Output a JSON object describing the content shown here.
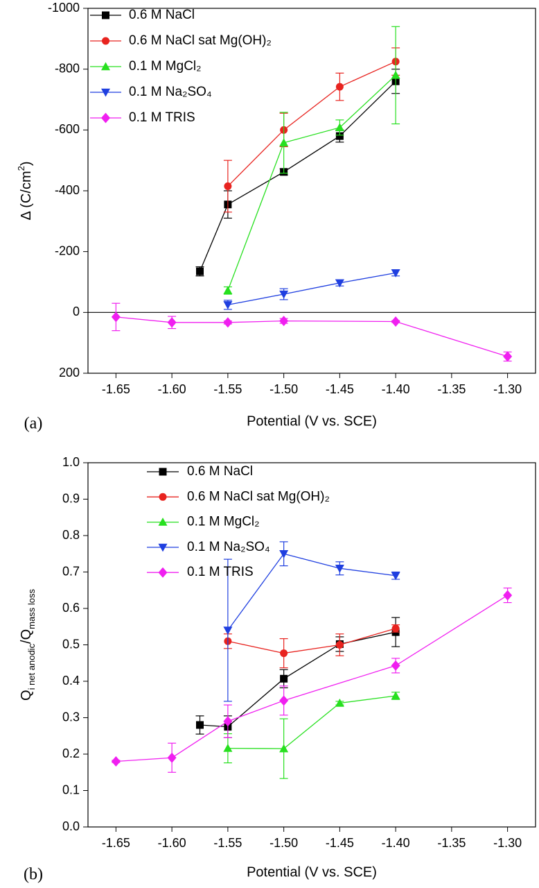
{
  "chart_data": [
    {
      "type": "line",
      "panel_label": "(a)",
      "xlabel": "Potential (V vs. SCE)",
      "ylabel": [
        {
          "text": "Δ (C/cm"
        },
        {
          "text": "2",
          "sup": true
        },
        {
          "text": ")"
        }
      ],
      "xlim": [
        -1.675,
        -1.275
      ],
      "xticks": [
        -1.65,
        {
          "value": -1.6,
          "label": "-1.60"
        },
        -1.55,
        {
          "value": -1.5,
          "label": "-1.50"
        },
        -1.45,
        {
          "value": -1.4,
          "label": "-1.40"
        },
        -1.35,
        {
          "value": -1.3,
          "label": "-1.30"
        }
      ],
      "ylim": [
        200,
        -1000
      ],
      "yticks": [
        200,
        0,
        -200,
        -400,
        -600,
        -800,
        -1000
      ],
      "zero_line": true,
      "series": [
        {
          "name": "0.6 M NaCl",
          "color": "#000000",
          "marker": "square",
          "x": [
            -1.575,
            -1.55,
            -1.5,
            -1.45,
            -1.4
          ],
          "values": [
            -135,
            -355,
            -462,
            -580,
            -760
          ],
          "errors": [
            15,
            45,
            10,
            20,
            40
          ]
        },
        {
          "name": "0.6 M NaCl sat Mg(OH)₂",
          "color": "#e8231f",
          "marker": "circle",
          "x": [
            -1.55,
            -1.5,
            -1.45,
            -1.4
          ],
          "values": [
            -415,
            -600,
            -742,
            -825
          ],
          "errors": [
            85,
            55,
            45,
            45
          ]
        },
        {
          "name": "0.1 M MgCl₂",
          "color": "#27e01f",
          "marker": "triangle-up",
          "x": [
            -1.55,
            -1.5,
            -1.45,
            -1.4
          ],
          "values": [
            -72,
            -558,
            -608,
            -780
          ],
          "errors": [
            12,
            100,
            25,
            160
          ]
        },
        {
          "name": "0.1 M Na₂SO₄",
          "color": "#1f3fe0",
          "marker": "triangle-down",
          "x": [
            -1.55,
            -1.5,
            -1.45,
            -1.4
          ],
          "values": [
            -25,
            -60,
            -97,
            -130
          ],
          "errors": [
            15,
            18,
            10,
            10
          ]
        },
        {
          "name": "0.1 M TRIS",
          "color": "#f01ff0",
          "marker": "diamond",
          "x": [
            -1.65,
            -1.6,
            -1.55,
            -1.5,
            -1.4,
            -1.3
          ],
          "values": [
            15,
            33,
            33,
            28,
            30,
            145
          ],
          "errors": [
            45,
            20,
            5,
            8,
            3,
            15
          ]
        }
      ]
    },
    {
      "type": "line",
      "panel_label": "(b)",
      "xlabel": "Potential (V vs. SCE)",
      "ylabel": [
        {
          "text": "Q"
        },
        {
          "text": "i net anodic",
          "sub": true
        },
        {
          "text": "/Q"
        },
        {
          "text": "mass loss",
          "sub": true
        }
      ],
      "xlim": [
        -1.675,
        -1.275
      ],
      "xticks": [
        -1.65,
        {
          "value": -1.6,
          "label": "-1.60"
        },
        -1.55,
        {
          "value": -1.5,
          "label": "-1.50"
        },
        -1.45,
        {
          "value": -1.4,
          "label": "-1.40"
        },
        -1.35,
        {
          "value": -1.3,
          "label": "-1.30"
        }
      ],
      "ylim": [
        0,
        1
      ],
      "yticks": [
        {
          "value": 0,
          "label": "0.0"
        },
        0.1,
        0.2,
        0.3,
        0.4,
        0.5,
        0.6,
        0.7,
        0.8,
        0.9,
        {
          "value": 1,
          "label": "1.0"
        }
      ],
      "series": [
        {
          "name": "0.6 M NaCl",
          "color": "#000000",
          "marker": "square",
          "x": [
            -1.575,
            -1.55,
            -1.5,
            -1.45,
            -1.4
          ],
          "values": [
            0.28,
            0.275,
            0.407,
            0.502,
            0.535
          ],
          "errors": [
            0.025,
            0.03,
            0.025,
            0.02,
            0.04
          ]
        },
        {
          "name": "0.6 M NaCl sat Mg(OH)₂",
          "color": "#e8231f",
          "marker": "circle",
          "x": [
            -1.55,
            -1.5,
            -1.45,
            -1.4
          ],
          "values": [
            0.51,
            0.477,
            0.5,
            0.545
          ],
          "errors": [
            0.02,
            0.04,
            0.03,
            0.01
          ]
        },
        {
          "name": "0.1 M MgCl₂",
          "color": "#27e01f",
          "marker": "triangle-up",
          "x": [
            -1.55,
            -1.5,
            -1.45,
            -1.4
          ],
          "values": [
            0.216,
            0.215,
            0.34,
            0.36
          ],
          "errors": [
            0.04,
            0.082,
            0.005,
            0.01
          ]
        },
        {
          "name": "0.1 M Na₂SO₄",
          "color": "#1f3fe0",
          "marker": "triangle-down",
          "x": [
            -1.55,
            -1.5,
            -1.45,
            -1.4
          ],
          "values": [
            0.54,
            0.75,
            0.71,
            0.69
          ],
          "errors": [
            0.195,
            0.033,
            0.018,
            0.01
          ]
        },
        {
          "name": "0.1 M TRIS",
          "color": "#f01ff0",
          "marker": "diamond",
          "x": [
            -1.65,
            -1.6,
            -1.55,
            -1.5,
            -1.4,
            -1.3
          ],
          "values": [
            0.18,
            0.19,
            0.29,
            0.347,
            0.443,
            0.636
          ],
          "errors": [
            0.003,
            0.04,
            0.045,
            0.04,
            0.02,
            0.02
          ]
        }
      ]
    }
  ]
}
